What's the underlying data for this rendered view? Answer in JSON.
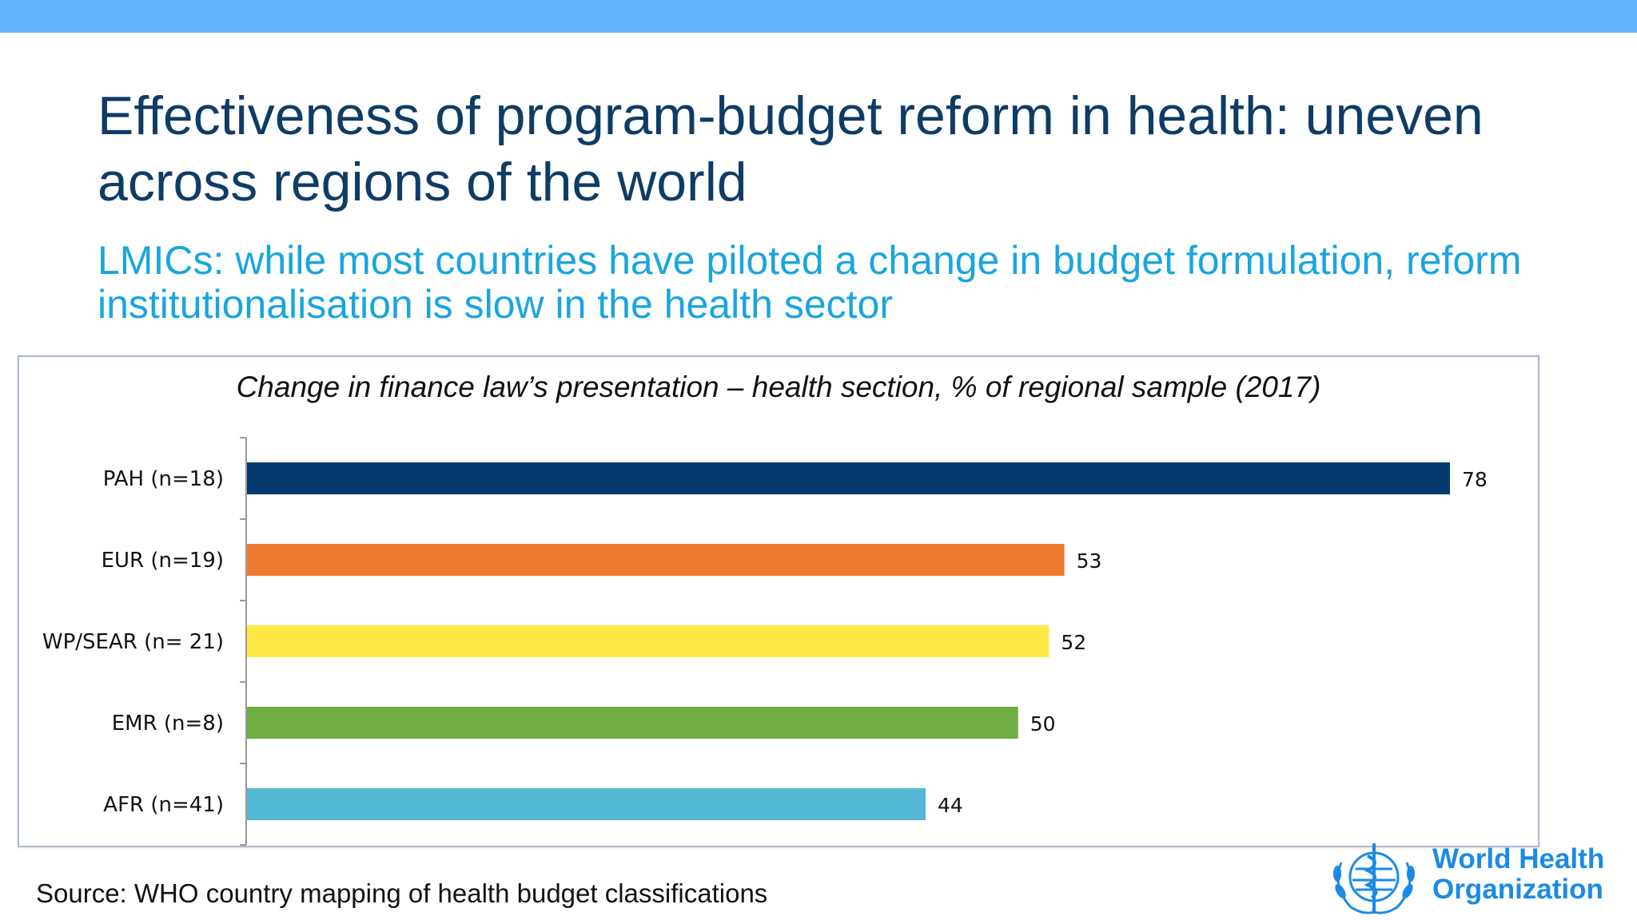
{
  "header": {
    "title": "Effectiveness of program-budget reform in health: uneven across regions of the world",
    "subtitle": "LMICs: while most countries have piloted a change in budget formulation, reform institutionalisation is slow in the health sector"
  },
  "colors": {
    "top_bar": "#62b7fc",
    "title": "#0e3c66",
    "subtitle": "#1aa5de",
    "org_name": "#1a8ae6"
  },
  "chart_data": {
    "type": "bar",
    "orientation": "horizontal",
    "title": "Change in finance law’s presentation – health section, % of regional sample (2017)",
    "categories": [
      "PAH (n=18)",
      "EUR (n=19)",
      "WP/SEAR (n= 21)",
      "EMR (n=8)",
      "AFR (n=41)"
    ],
    "values": [
      78,
      53,
      52,
      50,
      44
    ],
    "value_labels": [
      "78",
      "53",
      "52",
      "50",
      "44"
    ],
    "bar_colors": [
      "#043a6e",
      "#ee7d31",
      "#fee846",
      "#6fae43",
      "#52b8d4"
    ],
    "xlim": [
      0,
      80
    ],
    "grid": false,
    "legend": "none",
    "data_labels": true
  },
  "footer": {
    "source": "Source: WHO country mapping of health budget classifications",
    "org_line1": "World Health",
    "org_line2": "Organization",
    "logo_icon": "who-emblem-icon"
  }
}
